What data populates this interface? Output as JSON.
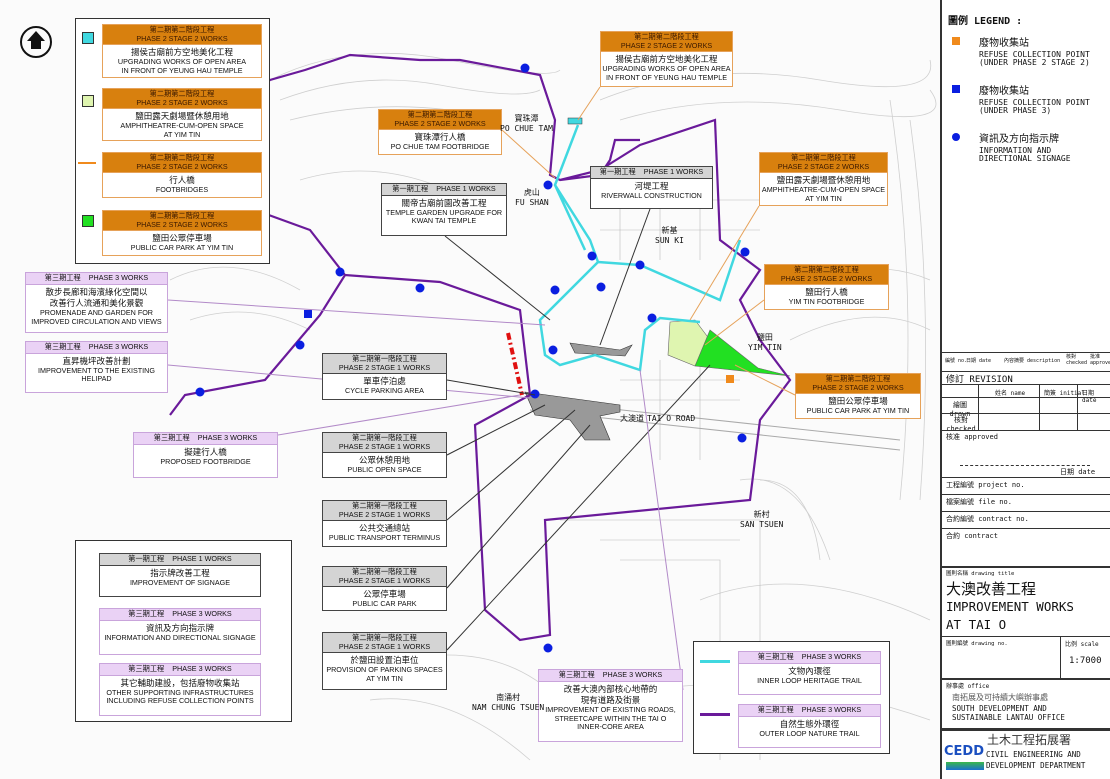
{
  "map": {
    "north_arrow": "north-arrow-icon",
    "places": [
      {
        "zh": "寶珠潭",
        "en": "PO CHUE TAM"
      },
      {
        "zh": "虎山",
        "en": "FU SHAN"
      },
      {
        "zh": "新基",
        "en": "SUN KI"
      },
      {
        "zh": "鹽田",
        "en": "YIM TIN"
      },
      {
        "zh": "大澳道",
        "en": "TAI O ROAD"
      },
      {
        "zh": "新村",
        "en": "SAN TSUEN"
      },
      {
        "zh": "南涌村",
        "en": "NAM CHUNG TSUEN"
      }
    ],
    "colors": {
      "outer_loop": "#6a1a9a",
      "inner_loop": "#40d8e0",
      "signage": "#0a1ee0",
      "phase2_stage2": "#d8800e",
      "phase3": "#ead2f5",
      "car_park_green": "#22e022",
      "amphitheatre": "#dff5b0"
    }
  },
  "callouts": [
    {
      "type": "p22",
      "zh_h": "第二期第二階段工程",
      "en_h": "PHASE 2 STAGE 2 WORKS",
      "body": [
        "揚侯古廟前方空地美化工程",
        "UPGRADING WORKS OF OPEN AREA",
        "IN FRONT OF YEUNG HAU TEMPLE"
      ]
    },
    {
      "type": "p22",
      "zh_h": "第二期第二階段工程",
      "en_h": "PHASE 2 STAGE 2 WORKS",
      "body": [
        "鹽田露天劇場暨休憩用地",
        "AMPHITHEATRE-CUM-OPEN SPACE",
        "AT YIM TIN"
      ]
    },
    {
      "type": "p22",
      "zh_h": "第二期第二階段工程",
      "en_h": "PHASE 2 STAGE 2 WORKS",
      "body": [
        "行人橋",
        "FOOTBRIDGES"
      ]
    },
    {
      "type": "p22",
      "zh_h": "第二期第二階段工程",
      "en_h": "PHASE 2 STAGE 2 WORKS",
      "body": [
        "鹽田公眾停車場",
        "PUBLIC CAR PARK AT YIM TIN"
      ]
    },
    {
      "type": "p3",
      "zh_h": "第三期工程",
      "en_h": "PHASE 3 WORKS",
      "body": [
        "散步長廊和海濱綠化空間以",
        "改善行人流通和美化景觀",
        "PROMENADE AND GARDEN FOR",
        "IMPROVED CIRCULATION AND VIEWS"
      ]
    },
    {
      "type": "p3",
      "zh_h": "第三期工程",
      "en_h": "PHASE 3 WORKS",
      "body": [
        "直昇機坪改善計劃",
        "IMPROVEMENT TO THE EXISTING",
        "HELIPAD"
      ]
    },
    {
      "type": "p3",
      "zh_h": "第三期工程",
      "en_h": "PHASE 3 WORKS",
      "body": [
        "擬建行人橋",
        "PROPOSED FOOTBRIDGE"
      ]
    },
    {
      "type": "p22",
      "zh_h": "第二期第二階段工程",
      "en_h": "PHASE 2 STAGE 2 WORKS",
      "body": [
        "揚侯古廟前方空地美化工程",
        "UPGRADING WORKS OF OPEN AREA",
        "IN FRONT OF YEUNG HAU TEMPLE"
      ]
    },
    {
      "type": "p22",
      "zh_h": "第二期第二階段工程",
      "en_h": "PHASE 2 STAGE 2 WORKS",
      "body": [
        "寶珠潭行人橋",
        "PO CHUE TAM FOOTBRIDGE"
      ]
    },
    {
      "type": "p1",
      "zh_h": "第一期工程",
      "en_h": "PHASE 1 WORKS",
      "body": [
        "關帝古廟前園改善工程",
        "TEMPLE GARDEN UPGRADE FOR",
        "KWAN TAI TEMPLE"
      ]
    },
    {
      "type": "p1",
      "zh_h": "第一期工程",
      "en_h": "PHASE 1 WORKS",
      "body": [
        "河堤工程",
        "RIVERWALL CONSTRUCTION"
      ]
    },
    {
      "type": "p22",
      "zh_h": "第二期第二階段工程",
      "en_h": "PHASE 2 STAGE 2 WORKS",
      "body": [
        "鹽田露天劇場暨休憩用地",
        "AMPHITHEATRE-CUM-OPEN SPACE",
        "AT YIM TIN"
      ]
    },
    {
      "type": "p22",
      "zh_h": "第二期第二階段工程",
      "en_h": "PHASE 2 STAGE 2 WORKS",
      "body": [
        "鹽田行人橋",
        "YIM TIN FOOTBRIDGE"
      ]
    },
    {
      "type": "p22",
      "zh_h": "第二期第二階段工程",
      "en_h": "PHASE 2 STAGE 2 WORKS",
      "body": [
        "鹽田公眾停車場",
        "PUBLIC CAR PARK AT YIM TIN"
      ]
    },
    {
      "type": "p21",
      "zh_h": "第二期第一階段工程",
      "en_h": "PHASE 2 STAGE 1 WORKS",
      "body": [
        "單車停泊處",
        "CYCLE PARKING AREA"
      ]
    },
    {
      "type": "p21",
      "zh_h": "第二期第一階段工程",
      "en_h": "PHASE 2 STAGE 1 WORKS",
      "body": [
        "公眾休憩用地",
        "PUBLIC OPEN SPACE"
      ]
    },
    {
      "type": "p21",
      "zh_h": "第二期第一階段工程",
      "en_h": "PHASE 2 STAGE 1 WORKS",
      "body": [
        "公共交通總站",
        "PUBLIC TRANSPORT TERMINUS"
      ]
    },
    {
      "type": "p21",
      "zh_h": "第二期第一階段工程",
      "en_h": "PHASE 2 STAGE 1 WORKS",
      "body": [
        "公眾停車場",
        "PUBLIC CAR PARK"
      ]
    },
    {
      "type": "p21",
      "zh_h": "第二期第一階段工程",
      "en_h": "PHASE 2 STAGE 1 WORKS",
      "body": [
        "於鹽田設置泊車位",
        "PROVISION OF PARKING SPACES",
        "AT YIM TIN"
      ]
    },
    {
      "type": "p1",
      "zh_h": "第一期工程",
      "en_h": "PHASE 1 WORKS",
      "body": [
        "指示牌改善工程",
        "IMPROVEMENT OF SIGNAGE"
      ]
    },
    {
      "type": "p3",
      "zh_h": "第三期工程",
      "en_h": "PHASE 3 WORKS",
      "body": [
        "資訊及方向指示牌",
        "INFORMATION AND DIRECTIONAL SIGNAGE"
      ]
    },
    {
      "type": "p3",
      "zh_h": "第三期工程",
      "en_h": "PHASE 3 WORKS",
      "body": [
        "其它輔助建設，包括廢物收集站",
        "OTHER SUPPORTING INFRASTRUCTURES",
        "INCLUDING REFUSE COLLECTION POINTS"
      ]
    },
    {
      "type": "p3",
      "zh_h": "第三期工程",
      "en_h": "PHASE 3 WORKS",
      "body": [
        "改善大澳內部核心地帶的",
        "現有道路及街景",
        "IMPROVEMENT OF EXISTING ROADS,",
        "STREETCAPE WITHIN THE TAI O",
        "INNER-CORE AREA"
      ]
    },
    {
      "type": "p3",
      "zh_h": "第三期工程",
      "en_h": "PHASE 3 WORKS",
      "body": [
        "文物內環徑",
        "INNER LOOP HERITAGE TRAIL"
      ]
    },
    {
      "type": "p3",
      "zh_h": "第三期工程",
      "en_h": "PHASE 3 WORKS",
      "body": [
        "自然生態外環徑",
        "OUTER LOOP NATURE TRAIL"
      ]
    }
  ],
  "legend": {
    "title": "圖例 LEGEND :",
    "items": [
      {
        "zh": "廢物收集站",
        "en1": "REFUSE COLLECTION POINT",
        "en2": "(UNDER PHASE 2 STAGE 2)",
        "color": "#f08a1c",
        "shape": "square"
      },
      {
        "zh": "廢物收集站",
        "en1": "REFUSE COLLECTION POINT",
        "en2": "(UNDER PHASE 3)",
        "color": "#0a1ee0",
        "shape": "square"
      },
      {
        "zh": "資訊及方向指示牌",
        "en1": "INFORMATION AND",
        "en2": "DIRECTIONAL SIGNAGE",
        "color": "#0a1ee0",
        "shape": "circle"
      }
    ]
  },
  "title_block": {
    "rev_cols": [
      "編號 no.",
      "日期 date",
      "內容摘要 description",
      "核對 checked",
      "批准 approved"
    ],
    "revision": "修訂 REVISION",
    "sig_cols": [
      "姓名 name",
      "簡簽 initial",
      "日期 date"
    ],
    "drawn": "繪圖 drawn",
    "checked": "核對 checked",
    "approved": "核准 approved",
    "approved_date": "日期 date",
    "project_no": "工程編號 project no.",
    "file_no": "檔案編號 file no.",
    "contract_no": "合約編號 contract no.",
    "contract": "合約 contract",
    "drawing_title_label": "圖則名稱 drawing title",
    "drawing_title_zh": "大澳改善工程",
    "drawing_title_en1": "IMPROVEMENT WORKS",
    "drawing_title_en2": "AT TAI O",
    "drawing_no": "圖則編號 drawing no.",
    "scale_label": "比例 scale",
    "scale": "1:7000",
    "office_label": "辦事處 office",
    "office_zh": "南拓展及可持續大嶼辦事處",
    "office_en1": "SOUTH DEVELOPMENT AND",
    "office_en2": "SUSTAINABLE LANTAU OFFICE",
    "dept_logo": "CEDD",
    "dept_zh": "土木工程拓展署",
    "dept_en1": "CIVIL ENGINEERING AND",
    "dept_en2": "DEVELOPMENT DEPARTMENT"
  }
}
